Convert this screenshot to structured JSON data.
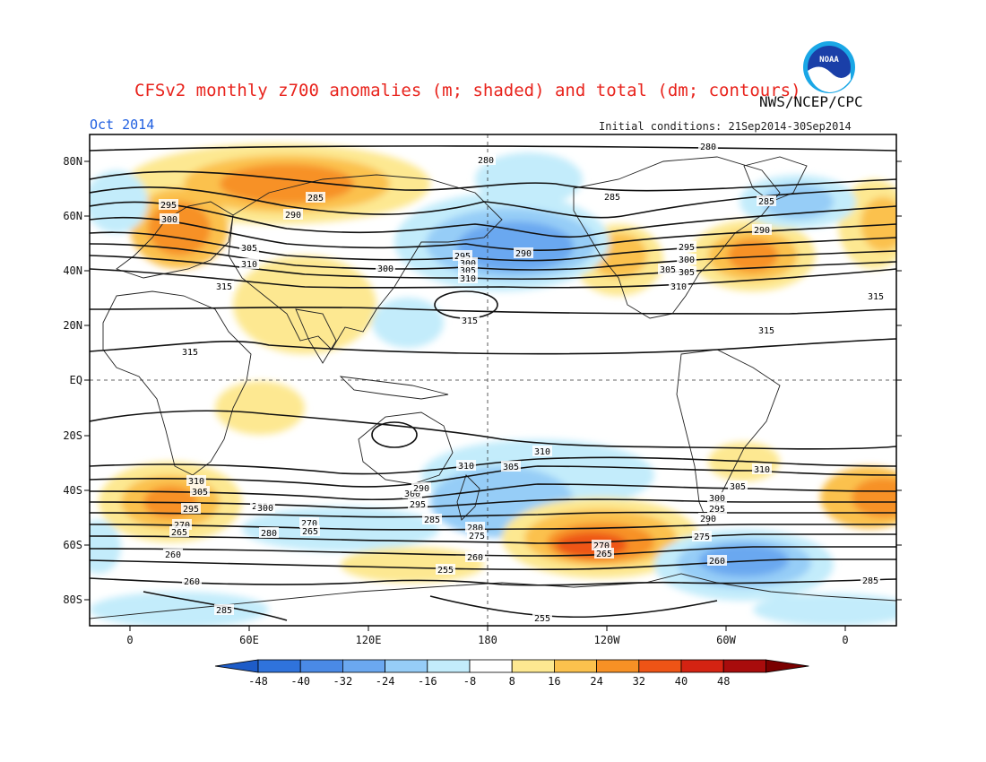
{
  "header": {
    "title": "CFSv2 monthly z700 anomalies (m; shaded) and total (dm; contours)",
    "org": "NWS/NCEP/CPC",
    "month": "Oct 2014",
    "initial_conditions": "Initial conditions: 21Sep2014-30Sep2014",
    "logo_text": "NOAA"
  },
  "map": {
    "lat_labels": [
      "80N",
      "60N",
      "40N",
      "20N",
      "EQ",
      "20S",
      "40S",
      "60S",
      "80S"
    ],
    "lon_labels": [
      "0",
      "60E",
      "120E",
      "180",
      "120W",
      "60W",
      "0"
    ],
    "contour_labels": [
      "280",
      "280",
      "285",
      "285",
      "290",
      "290",
      "290",
      "295",
      "295",
      "295",
      "300",
      "300",
      "300",
      "305",
      "305",
      "305",
      "310",
      "310",
      "315",
      "315",
      "315",
      "315",
      "315",
      "285",
      "300",
      "305",
      "310",
      "310",
      "310",
      "310",
      "305",
      "305",
      "300",
      "300",
      "295",
      "290",
      "285",
      "295",
      "280",
      "275",
      "270",
      "265",
      "260",
      "260",
      "285",
      "290",
      "295",
      "300",
      "305",
      "310",
      "285",
      "280",
      "275",
      "270",
      "265",
      "260",
      "255",
      "255",
      "260",
      "285",
      "270",
      "265"
    ]
  },
  "colorbar": {
    "ticks": [
      "-48",
      "-40",
      "-32",
      "-24",
      "-16",
      "-8",
      "8",
      "16",
      "24",
      "32",
      "40",
      "48"
    ],
    "colors": [
      "#1e5cc8",
      "#2f73dc",
      "#4a8ae6",
      "#6ba8f0",
      "#96cdf7",
      "#c3ecfb",
      "#ffffff",
      "#fde891",
      "#fbc14d",
      "#f79125",
      "#ee5416",
      "#d42312",
      "#a80c0c",
      "#7a0000"
    ]
  }
}
